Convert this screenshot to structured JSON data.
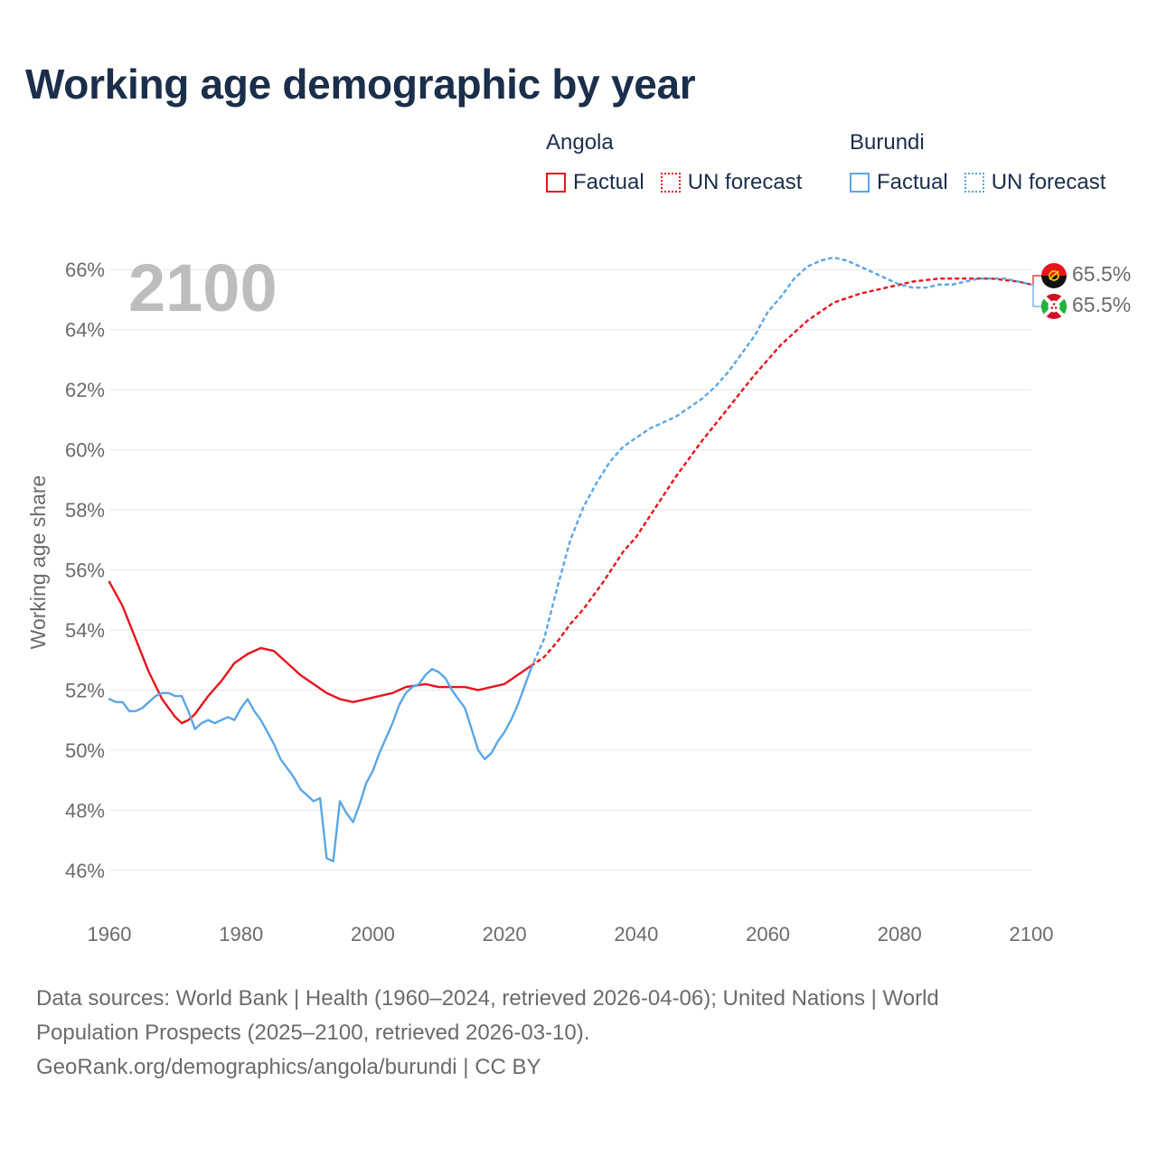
{
  "title": "Working age demographic by year",
  "year_overlay": "2100",
  "legend": {
    "angola": {
      "country": "Angola",
      "factual": "Factual",
      "forecast": "UN forecast"
    },
    "burundi": {
      "country": "Burundi",
      "factual": "Factual",
      "forecast": "UN forecast"
    }
  },
  "end_labels": {
    "angola": "65.5%",
    "burundi": "65.5%"
  },
  "footer": {
    "line1": "Data sources: World Bank | Health (1960–2024, retrieved 2026-04-06); United Nations | World",
    "line2": "Population Prospects (2025–2100, retrieved 2026-03-10).",
    "line3": "GeoRank.org/demographics/angola/burundi | CC BY"
  },
  "colors": {
    "angola": "#e8141c",
    "burundi": "#5aa6e6",
    "grid": "#e6e6e6",
    "axis_text": "#6b6b6b",
    "title": "#1b2e4b"
  },
  "chart_data": {
    "type": "line",
    "title": "Working age demographic by year",
    "xlabel": "",
    "ylabel": "Working age share",
    "xlim": [
      1960,
      2100
    ],
    "ylim": [
      45,
      67
    ],
    "x_ticks": [
      1960,
      1980,
      2000,
      2020,
      2040,
      2060,
      2080,
      2100
    ],
    "x_tick_labels": [
      "1960",
      "1980",
      "2000",
      "2020",
      "2040",
      "2060",
      "2080",
      "2100"
    ],
    "y_ticks": [
      46,
      48,
      50,
      52,
      54,
      56,
      58,
      60,
      62,
      64,
      66
    ],
    "y_tick_labels": [
      "46%",
      "48%",
      "50%",
      "52%",
      "54%",
      "56%",
      "58%",
      "60%",
      "62%",
      "64%",
      "66%"
    ],
    "series": [
      {
        "name": "Angola Factual",
        "country": "Angola",
        "style": "solid",
        "color": "#e8141c",
        "x": [
          1960,
          1962,
          1964,
          1966,
          1968,
          1970,
          1971,
          1972,
          1973,
          1975,
          1977,
          1979,
          1981,
          1983,
          1985,
          1987,
          1989,
          1991,
          1993,
          1995,
          1997,
          1999,
          2001,
          2003,
          2005,
          2008,
          2010,
          2014,
          2016,
          2018,
          2020,
          2022,
          2024
        ],
        "y": [
          55.6,
          54.8,
          53.7,
          52.6,
          51.7,
          51.1,
          50.9,
          51.0,
          51.2,
          51.8,
          52.3,
          52.9,
          53.2,
          53.4,
          53.3,
          52.9,
          52.5,
          52.2,
          51.9,
          51.7,
          51.6,
          51.7,
          51.8,
          51.9,
          52.1,
          52.2,
          52.1,
          52.1,
          52.0,
          52.1,
          52.2,
          52.5,
          52.8
        ]
      },
      {
        "name": "Angola UN forecast",
        "country": "Angola",
        "style": "dotted",
        "color": "#e8141c",
        "x": [
          2024,
          2026,
          2028,
          2030,
          2032,
          2035,
          2038,
          2040,
          2043,
          2046,
          2050,
          2054,
          2058,
          2062,
          2066,
          2070,
          2074,
          2078,
          2082,
          2086,
          2090,
          2094,
          2098,
          2100
        ],
        "y": [
          52.8,
          53.1,
          53.6,
          54.2,
          54.7,
          55.6,
          56.6,
          57.1,
          58.1,
          59.1,
          60.3,
          61.4,
          62.5,
          63.5,
          64.3,
          64.9,
          65.2,
          65.4,
          65.6,
          65.7,
          65.7,
          65.7,
          65.6,
          65.5
        ]
      },
      {
        "name": "Burundi Factual",
        "country": "Burundi",
        "style": "solid",
        "color": "#5aa6e6",
        "x": [
          1960,
          1961,
          1962,
          1963,
          1964,
          1965,
          1966,
          1967,
          1968,
          1969,
          1970,
          1971,
          1972,
          1973,
          1974,
          1975,
          1976,
          1977,
          1978,
          1979,
          1980,
          1981,
          1982,
          1983,
          1984,
          1985,
          1986,
          1987,
          1988,
          1989,
          1990,
          1991,
          1992,
          1993,
          1994,
          1995,
          1996,
          1997,
          1998,
          1999,
          2000,
          2001,
          2002,
          2003,
          2004,
          2005,
          2006,
          2007,
          2008,
          2009,
          2010,
          2011,
          2012,
          2013,
          2014,
          2015,
          2016,
          2017,
          2018,
          2019,
          2020,
          2021,
          2022,
          2023,
          2024
        ],
        "y": [
          51.7,
          51.6,
          51.6,
          51.3,
          51.3,
          51.4,
          51.6,
          51.8,
          51.9,
          51.9,
          51.8,
          51.8,
          51.3,
          50.7,
          50.9,
          51.0,
          50.9,
          51.0,
          51.1,
          51.0,
          51.4,
          51.7,
          51.3,
          51.0,
          50.6,
          50.2,
          49.7,
          49.4,
          49.1,
          48.7,
          48.5,
          48.3,
          48.4,
          46.4,
          46.3,
          48.3,
          47.9,
          47.6,
          48.2,
          48.9,
          49.3,
          49.9,
          50.4,
          50.9,
          51.5,
          51.9,
          52.1,
          52.2,
          52.5,
          52.7,
          52.6,
          52.4,
          52.0,
          51.7,
          51.4,
          50.7,
          50.0,
          49.7,
          49.9,
          50.3,
          50.6,
          51.0,
          51.5,
          52.1,
          52.7
        ]
      },
      {
        "name": "Burundi UN forecast",
        "country": "Burundi",
        "style": "dotted",
        "color": "#5aa6e6",
        "x": [
          2024,
          2026,
          2028,
          2030,
          2032,
          2034,
          2036,
          2038,
          2040,
          2042,
          2044,
          2046,
          2048,
          2050,
          2052,
          2054,
          2056,
          2058,
          2060,
          2062,
          2064,
          2066,
          2068,
          2070,
          2072,
          2074,
          2076,
          2078,
          2080,
          2082,
          2084,
          2086,
          2088,
          2090,
          2092,
          2094,
          2096,
          2098,
          2100
        ],
        "y": [
          52.7,
          53.7,
          55.4,
          57.0,
          58.1,
          58.9,
          59.6,
          60.1,
          60.4,
          60.7,
          60.9,
          61.1,
          61.4,
          61.7,
          62.1,
          62.6,
          63.2,
          63.8,
          64.6,
          65.1,
          65.7,
          66.1,
          66.3,
          66.4,
          66.3,
          66.1,
          65.9,
          65.7,
          65.5,
          65.4,
          65.4,
          65.5,
          65.5,
          65.6,
          65.7,
          65.7,
          65.7,
          65.6,
          65.5
        ]
      }
    ],
    "end_values": {
      "Angola": 65.5,
      "Burundi": 65.5
    }
  }
}
